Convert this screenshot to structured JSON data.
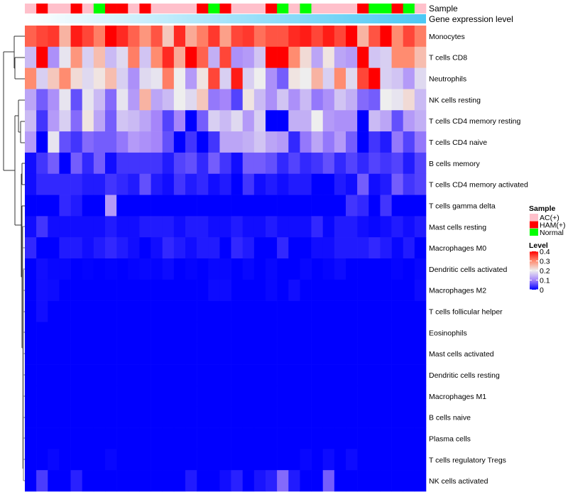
{
  "chart_data": {
    "type": "heatmap",
    "annotations": {
      "sample_label": "Sample",
      "gene_label": "Gene expression level",
      "sample_groups": [
        "AC(+)",
        "HAM(+)",
        "AC(+)",
        "AC(+)",
        "HAM(+)",
        "AC(+)",
        "Normal",
        "HAM(+)",
        "HAM(+)",
        "AC(+)",
        "HAM(+)",
        "AC(+)",
        "AC(+)",
        "AC(+)",
        "AC(+)",
        "HAM(+)",
        "Normal",
        "HAM(+)",
        "AC(+)",
        "AC(+)",
        "AC(+)",
        "HAM(+)",
        "Normal",
        "AC(+)",
        "Normal",
        "AC(+)",
        "AC(+)",
        "AC(+)",
        "AC(+)",
        "HAM(+)",
        "Normal",
        "Normal",
        "HAM(+)",
        "Normal",
        "AC(+)"
      ],
      "gene_gradient": [
        "#ffffff",
        "#4cc8f4"
      ]
    },
    "rows": [
      "Monocytes",
      "T cells CD8",
      "Neutrophils",
      "NK cells resting",
      "T cells CD4 memory resting",
      "T cells CD4 naive",
      "B cells memory",
      "T cells CD4 memory activated",
      "T cells gamma delta",
      "Mast cells resting",
      "Macrophages M0",
      "Dendritic cells activated",
      "Macrophages M2",
      "T cells follicular helper",
      "Eosinophils",
      "Mast cells activated",
      "Dendritic cells resting",
      "Macrophages M1",
      "B cells naive",
      "Plasma cells",
      "T cells regulatory  Tregs",
      "NK cells activated"
    ],
    "values": [
      [
        0.33,
        0.35,
        0.36,
        0.26,
        0.38,
        0.35,
        0.31,
        0.4,
        0.37,
        0.33,
        0.29,
        0.34,
        0.24,
        0.37,
        0.27,
        0.31,
        0.36,
        0.28,
        0.35,
        0.36,
        0.32,
        0.34,
        0.34,
        0.37,
        0.38,
        0.35,
        0.38,
        0.35,
        0.4,
        0.26,
        0.34,
        0.4,
        0.3,
        0.35,
        0.31
      ],
      [
        0.15,
        0.4,
        0.11,
        0.19,
        0.29,
        0.17,
        0.25,
        0.15,
        0.18,
        0.31,
        0.16,
        0.3,
        0.37,
        0.27,
        0.4,
        0.33,
        0.14,
        0.35,
        0.11,
        0.12,
        0.16,
        0.4,
        0.4,
        0.3,
        0.22,
        0.13,
        0.21,
        0.13,
        0.12,
        0.4,
        0.16,
        0.17,
        0.3,
        0.3,
        0.25
      ],
      [
        0.3,
        0.17,
        0.24,
        0.3,
        0.22,
        0.18,
        0.21,
        0.25,
        0.17,
        0.11,
        0.18,
        0.19,
        0.31,
        0.2,
        0.12,
        0.21,
        0.35,
        0.17,
        0.38,
        0.17,
        0.2,
        0.11,
        0.07,
        0.21,
        0.2,
        0.26,
        0.17,
        0.3,
        0.18,
        0.35,
        0.4,
        0.17,
        0.16,
        0.12,
        0.18
      ],
      [
        0.13,
        0.07,
        0.11,
        0.19,
        0.06,
        0.19,
        0.15,
        0.08,
        0.19,
        0.12,
        0.26,
        0.13,
        0.15,
        0.2,
        0.18,
        0.24,
        0.09,
        0.1,
        0.05,
        0.21,
        0.15,
        0.11,
        0.16,
        0.11,
        0.15,
        0.09,
        0.11,
        0.16,
        0.14,
        0.08,
        0.07,
        0.2,
        0.19,
        0.22,
        0.15
      ],
      [
        0.15,
        0.04,
        0.12,
        0.17,
        0.08,
        0.21,
        0.13,
        0.07,
        0.16,
        0.15,
        0.13,
        0.1,
        0.05,
        0.1,
        0,
        0.07,
        0.17,
        0.15,
        0.18,
        0.12,
        0.17,
        0,
        0,
        0.14,
        0.14,
        0.2,
        0.12,
        0.11,
        0.11,
        0,
        0.15,
        0.13,
        0.06,
        0.12,
        0.14
      ],
      [
        0.12,
        0,
        0.19,
        0.06,
        0.04,
        0.08,
        0.07,
        0.07,
        0.09,
        0.12,
        0.11,
        0.1,
        0.06,
        0,
        0.04,
        0,
        0.04,
        0.13,
        0.13,
        0.14,
        0.16,
        0.13,
        0.12,
        0.03,
        0.09,
        0.13,
        0.09,
        0.12,
        0.07,
        0,
        0.04,
        0.02,
        0.09,
        0.05,
        0.09
      ],
      [
        0.01,
        0.04,
        0.07,
        0,
        0.07,
        0.03,
        0.07,
        0.01,
        0.04,
        0.04,
        0.04,
        0.04,
        0.02,
        0.05,
        0.06,
        0.03,
        0.07,
        0.04,
        0.01,
        0.07,
        0.07,
        0.06,
        0.03,
        0.05,
        0.03,
        0.04,
        0.06,
        0.03,
        0.05,
        0.03,
        0.05,
        0.04,
        0.05,
        0.02,
        0.05
      ],
      [
        0.01,
        0.03,
        0.03,
        0.03,
        0.03,
        0.02,
        0.02,
        0.04,
        0.03,
        0.02,
        0.06,
        0.02,
        0.01,
        0.04,
        0.02,
        0.03,
        0.01,
        0.02,
        0,
        0.04,
        0.01,
        0.02,
        0.01,
        0.02,
        0.02,
        0,
        0,
        0.02,
        0.01,
        0.07,
        0.01,
        0.02,
        0.07,
        0.04,
        0.05
      ],
      [
        0,
        0,
        0,
        0.03,
        0.02,
        0,
        0,
        0.12,
        0,
        0,
        0,
        0,
        0,
        0,
        0,
        0,
        0,
        0,
        0,
        0,
        0,
        0,
        0,
        0,
        0,
        0,
        0,
        0,
        0.04,
        0.03,
        0,
        0.04,
        0,
        0,
        0
      ],
      [
        0.01,
        0.04,
        0.01,
        0.01,
        0.01,
        0.01,
        0.01,
        0.02,
        0.01,
        0.01,
        0.02,
        0.02,
        0.02,
        0.01,
        0.02,
        0.02,
        0.01,
        0.01,
        0.02,
        0.01,
        0.01,
        0.02,
        0.01,
        0.01,
        0.01,
        0.03,
        0.005,
        0.02,
        0.02,
        0.01,
        0.005,
        0.01,
        0.02,
        0.01,
        0.02
      ],
      [
        0.03,
        0,
        0,
        0.02,
        0.02,
        0.01,
        0.02,
        0.03,
        0.02,
        0.01,
        0,
        0.01,
        0.03,
        0.02,
        0.01,
        0.02,
        0.02,
        0,
        0.03,
        0.02,
        0,
        0,
        0.03,
        0,
        0,
        0.01,
        0.01,
        0.02,
        0.02,
        0.02,
        0.03,
        0.02,
        0.005,
        0.02,
        0
      ],
      [
        0,
        0.01,
        0.005,
        0.005,
        0,
        0.002,
        0,
        0.002,
        0,
        0.003,
        0.005,
        0.003,
        0.008,
        0,
        0.003,
        0,
        0.005,
        0.005,
        0,
        0.005,
        0,
        0.005,
        0,
        0,
        0.005,
        0,
        0.003,
        0.008,
        0,
        0,
        0,
        0,
        0.003,
        0,
        0.005
      ],
      [
        0,
        0.01,
        0.008,
        0,
        0,
        0,
        0,
        0,
        0,
        0,
        0,
        0,
        0,
        0,
        0,
        0,
        0.008,
        0.008,
        0,
        0,
        0,
        0.005,
        0,
        0.01,
        0,
        0,
        0,
        0,
        0,
        0,
        0,
        0,
        0,
        0,
        0.008
      ],
      [
        0,
        0.01,
        0,
        0,
        0,
        0,
        0,
        0,
        0,
        0,
        0,
        0,
        0,
        0,
        0,
        0,
        0,
        0,
        0,
        0,
        0,
        0,
        0,
        0,
        0,
        0,
        0,
        0,
        0,
        0,
        0,
        0,
        0,
        0,
        0
      ],
      [
        0,
        0,
        0,
        0,
        0,
        0,
        0,
        0,
        0,
        0,
        0,
        0,
        0,
        0,
        0,
        0,
        0,
        0,
        0,
        0,
        0,
        0,
        0,
        0,
        0,
        0,
        0,
        0,
        0,
        0,
        0,
        0,
        0,
        0,
        0
      ],
      [
        0,
        0,
        0,
        0,
        0,
        0,
        0,
        0,
        0,
        0,
        0,
        0,
        0,
        0,
        0,
        0,
        0,
        0,
        0,
        0,
        0,
        0,
        0,
        0,
        0,
        0,
        0,
        0,
        0,
        0,
        0,
        0,
        0,
        0,
        0
      ],
      [
        0,
        0,
        0,
        0,
        0,
        0,
        0,
        0,
        0,
        0,
        0,
        0,
        0,
        0,
        0,
        0,
        0,
        0,
        0,
        0,
        0,
        0,
        0,
        0,
        0,
        0,
        0,
        0,
        0,
        0,
        0,
        0,
        0,
        0,
        0
      ],
      [
        0,
        0,
        0,
        0,
        0,
        0,
        0,
        0,
        0,
        0,
        0,
        0,
        0,
        0,
        0,
        0,
        0,
        0,
        0,
        0,
        0,
        0,
        0,
        0,
        0,
        0,
        0,
        0,
        0,
        0,
        0,
        0,
        0,
        0,
        0
      ],
      [
        0,
        0,
        0,
        0,
        0,
        0,
        0,
        0,
        0,
        0,
        0,
        0,
        0,
        0,
        0,
        0,
        0,
        0,
        0,
        0,
        0,
        0,
        0,
        0,
        0,
        0,
        0,
        0,
        0,
        0,
        0,
        0,
        0,
        0,
        0
      ],
      [
        0,
        0,
        0,
        0,
        0,
        0,
        0,
        0,
        0,
        0,
        0,
        0,
        0,
        0,
        0,
        0,
        0,
        0,
        0,
        0,
        0,
        0,
        0,
        0,
        0,
        0,
        0,
        0,
        0,
        0,
        0,
        0,
        0,
        0,
        0
      ],
      [
        0,
        0,
        0.005,
        0,
        0,
        0,
        0,
        0.005,
        0,
        0,
        0,
        0,
        0,
        0,
        0,
        0,
        0,
        0,
        0,
        0,
        0,
        0,
        0,
        0,
        0.005,
        0,
        0.008,
        0,
        0.008,
        0,
        0,
        0,
        0,
        0,
        0
      ],
      [
        0,
        0.045,
        0,
        0,
        0.025,
        0,
        0,
        0,
        0,
        0,
        0,
        0,
        0,
        0,
        0.02,
        0,
        0,
        0.01,
        0.025,
        0,
        0.015,
        0.025,
        0.08,
        0.02,
        0,
        0,
        0.07,
        0,
        0,
        0,
        0,
        0,
        0,
        0,
        0
      ]
    ],
    "color_stops": [
      {
        "value": 0,
        "color": "#0000ff"
      },
      {
        "value": 0.1,
        "color": "#a585fa"
      },
      {
        "value": 0.2,
        "color": "#eeeeee"
      },
      {
        "value": 0.3,
        "color": "#ff8c70"
      },
      {
        "value": 0.4,
        "color": "#ff0000"
      }
    ],
    "legend": {
      "sample_title": "Sample",
      "sample_items": [
        {
          "label": "AC(+)",
          "color": "#ffc0cb"
        },
        {
          "label": "HAM(+)",
          "color": "#ff0000"
        },
        {
          "label": "Normal",
          "color": "#00ff00"
        }
      ],
      "level_title": "Level",
      "level_ticks": [
        "0.4",
        "0.3",
        "0.2",
        "0.1",
        "0"
      ],
      "level_tick_values": [
        0.4,
        0.3,
        0.2,
        0.1,
        0
      ],
      "placement": "right"
    },
    "row_dendrogram": true
  }
}
